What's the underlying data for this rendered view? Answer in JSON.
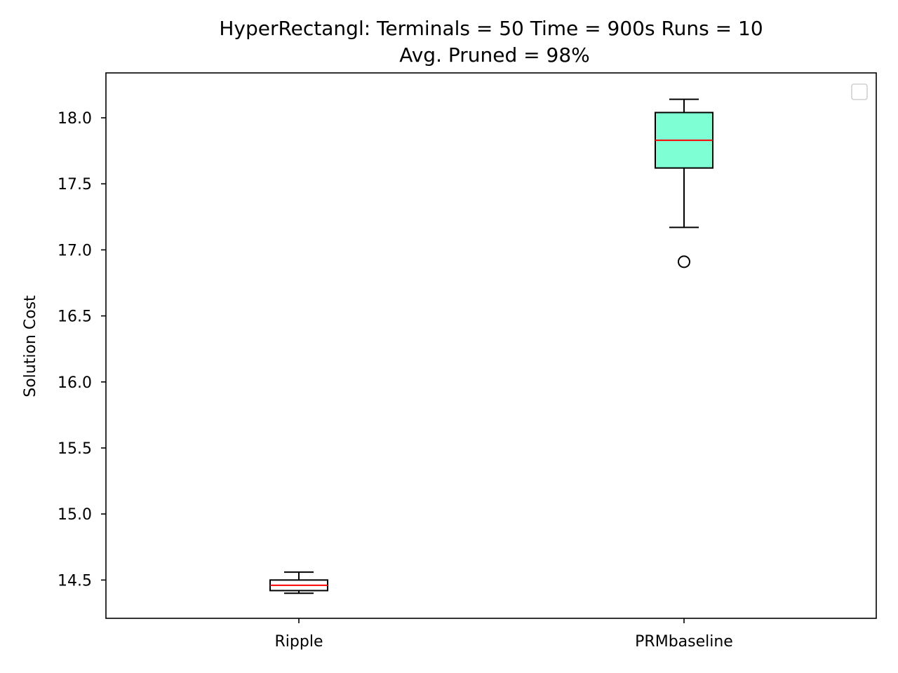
{
  "chart_data": {
    "type": "box",
    "title": "HyperRectangl:  Terminals = 50  Time = 900s  Runs = 10",
    "subtitle": "Avg. Pruned = 98%",
    "xlabel": "",
    "ylabel": "Solution Cost",
    "ylim": [
      14.21,
      18.34
    ],
    "yticks": [
      "14.5",
      "15.0",
      "15.5",
      "16.0",
      "16.5",
      "17.0",
      "17.5",
      "18.0"
    ],
    "grid": false,
    "legend": "top-right (empty)",
    "categories": [
      "Ripple",
      "PRMbaseline"
    ],
    "boxes": [
      {
        "name": "Ripple",
        "whisker_low": 14.4,
        "q1": 14.42,
        "median": 14.46,
        "q3": 14.5,
        "whisker_high": 14.56,
        "outliers": [],
        "fill": "#ffffff"
      },
      {
        "name": "PRMbaseline",
        "whisker_low": 17.17,
        "q1": 17.62,
        "median": 17.83,
        "q3": 18.04,
        "whisker_high": 18.14,
        "outliers": [
          16.91
        ],
        "fill": "#7fffd4"
      }
    ],
    "colors": {
      "median": "#ff0000",
      "edge": "#000000"
    }
  }
}
